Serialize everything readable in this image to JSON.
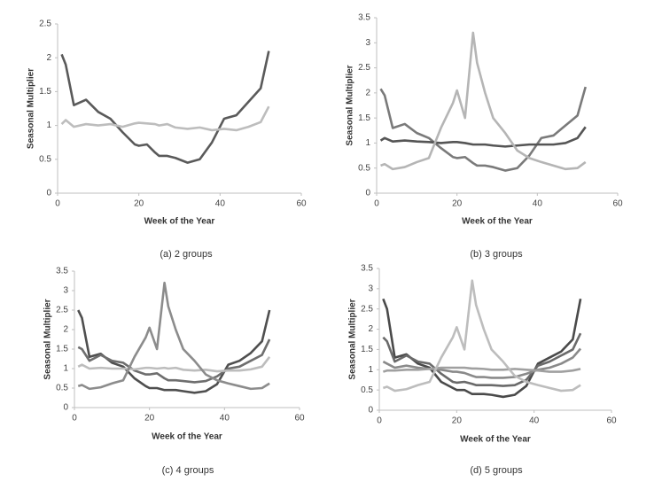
{
  "chart_data": [
    {
      "type": "line",
      "caption": "(a)  2 groups",
      "xlabel": "Week of the Year",
      "ylabel": "Seasonal Multiplier",
      "xlim": [
        0,
        60
      ],
      "xticks": [
        0,
        20,
        40,
        60
      ],
      "ylim": [
        0,
        2.5
      ],
      "yticks": [
        0,
        0.5,
        1,
        1.5,
        2,
        2.5
      ],
      "x": [
        1,
        2,
        4,
        7,
        10,
        13,
        16,
        19,
        20,
        22,
        24,
        25,
        27,
        29,
        32,
        35,
        38,
        41,
        44,
        47,
        50,
        52
      ],
      "series": [
        {
          "color": "#5a5a5a",
          "values": [
            2.05,
            1.9,
            1.3,
            1.38,
            1.2,
            1.1,
            0.9,
            0.72,
            0.7,
            0.72,
            0.6,
            0.55,
            0.55,
            0.52,
            0.45,
            0.5,
            0.75,
            1.1,
            1.15,
            1.35,
            1.55,
            2.1
          ]
        },
        {
          "color": "#bdbdbd",
          "values": [
            1.02,
            1.08,
            0.98,
            1.02,
            1.0,
            1.02,
            0.98,
            1.03,
            1.04,
            1.03,
            1.02,
            1.0,
            1.02,
            0.97,
            0.95,
            0.97,
            0.93,
            0.95,
            0.93,
            0.98,
            1.05,
            1.28
          ]
        }
      ]
    },
    {
      "type": "line",
      "caption": "(b)   3 groups",
      "xlabel": "Week of the Year",
      "ylabel": "Seasonal Multiplier",
      "xlim": [
        0,
        60
      ],
      "xticks": [
        0,
        20,
        40,
        60
      ],
      "ylim": [
        0,
        3.5
      ],
      "yticks": [
        0,
        0.5,
        1,
        1.5,
        2,
        2.5,
        3,
        3.5
      ],
      "x": [
        1,
        2,
        4,
        7,
        10,
        13,
        16,
        19,
        20,
        22,
        24,
        25,
        27,
        29,
        32,
        35,
        38,
        41,
        44,
        47,
        50,
        52
      ],
      "series": [
        {
          "color": "#7a7a7a",
          "values": [
            2.08,
            1.95,
            1.3,
            1.38,
            1.2,
            1.1,
            0.9,
            0.72,
            0.7,
            0.72,
            0.6,
            0.55,
            0.55,
            0.52,
            0.45,
            0.5,
            0.75,
            1.1,
            1.15,
            1.35,
            1.55,
            2.12
          ]
        },
        {
          "color": "#555555",
          "values": [
            1.05,
            1.1,
            1.03,
            1.05,
            1.03,
            1.02,
            1.0,
            1.02,
            1.02,
            1.0,
            0.97,
            0.97,
            0.97,
            0.95,
            0.93,
            0.95,
            0.97,
            0.97,
            0.97,
            1.0,
            1.1,
            1.32
          ]
        },
        {
          "color": "#b5b5b5",
          "values": [
            0.55,
            0.58,
            0.48,
            0.52,
            0.62,
            0.7,
            1.3,
            1.8,
            2.05,
            1.5,
            3.2,
            2.6,
            2.0,
            1.5,
            1.2,
            0.85,
            0.7,
            0.62,
            0.55,
            0.48,
            0.5,
            0.62
          ]
        }
      ]
    },
    {
      "type": "line",
      "caption": "(c) 4 groups",
      "xlabel": "Week of the Year",
      "ylabel": "Seasonal Multiplier",
      "xlim": [
        0,
        60
      ],
      "xticks": [
        0,
        20,
        40,
        60
      ],
      "ylim": [
        0,
        3.5
      ],
      "yticks": [
        0,
        0.5,
        1,
        1.5,
        2,
        2.5,
        3,
        3.5
      ],
      "x": [
        1,
        2,
        4,
        7,
        10,
        13,
        16,
        19,
        20,
        22,
        24,
        25,
        27,
        29,
        32,
        35,
        38,
        41,
        44,
        47,
        50,
        52
      ],
      "series": [
        {
          "color": "#4f4f4f",
          "values": [
            2.5,
            2.3,
            1.3,
            1.38,
            1.15,
            1.05,
            0.75,
            0.55,
            0.5,
            0.5,
            0.45,
            0.45,
            0.45,
            0.42,
            0.38,
            0.42,
            0.6,
            1.1,
            1.2,
            1.4,
            1.7,
            2.5
          ]
        },
        {
          "color": "#6e6e6e",
          "values": [
            1.55,
            1.5,
            1.2,
            1.35,
            1.2,
            1.15,
            0.95,
            0.85,
            0.85,
            0.88,
            0.75,
            0.7,
            0.7,
            0.68,
            0.65,
            0.68,
            0.8,
            1.0,
            1.05,
            1.2,
            1.35,
            1.75
          ]
        },
        {
          "color": "#bdbdbd",
          "values": [
            1.05,
            1.1,
            1.0,
            1.02,
            1.0,
            1.0,
            0.98,
            1.02,
            1.02,
            1.0,
            1.02,
            1.0,
            1.02,
            0.97,
            0.95,
            0.97,
            0.93,
            0.95,
            0.95,
            0.98,
            1.05,
            1.3
          ]
        },
        {
          "color": "#8c8c8c",
          "values": [
            0.55,
            0.58,
            0.48,
            0.52,
            0.62,
            0.7,
            1.3,
            1.8,
            2.05,
            1.5,
            3.2,
            2.6,
            2.0,
            1.5,
            1.2,
            0.85,
            0.7,
            0.62,
            0.55,
            0.48,
            0.5,
            0.62
          ]
        }
      ]
    },
    {
      "type": "line",
      "caption": "(d)  5 groups",
      "xlabel": "Week of the Year",
      "ylabel": "Seasonal Multiplier",
      "xlim": [
        0,
        60
      ],
      "xticks": [
        0,
        20,
        40,
        60
      ],
      "ylim": [
        0,
        3.5
      ],
      "yticks": [
        0,
        0.5,
        1,
        1.5,
        2,
        2.5,
        3,
        3.5
      ],
      "x": [
        1,
        2,
        4,
        7,
        10,
        13,
        16,
        19,
        20,
        22,
        24,
        25,
        27,
        29,
        32,
        35,
        38,
        41,
        44,
        47,
        50,
        52
      ],
      "series": [
        {
          "color": "#4a4a4a",
          "values": [
            2.75,
            2.5,
            1.3,
            1.38,
            1.15,
            1.05,
            0.7,
            0.55,
            0.5,
            0.5,
            0.4,
            0.4,
            0.4,
            0.38,
            0.33,
            0.38,
            0.6,
            1.15,
            1.3,
            1.45,
            1.75,
            2.75
          ]
        },
        {
          "color": "#6a6a6a",
          "values": [
            1.8,
            1.7,
            1.2,
            1.35,
            1.2,
            1.15,
            0.9,
            0.7,
            0.68,
            0.7,
            0.65,
            0.62,
            0.62,
            0.62,
            0.6,
            0.62,
            0.75,
            1.1,
            1.2,
            1.35,
            1.5,
            1.9
          ]
        },
        {
          "color": "#8a8a8a",
          "values": [
            1.2,
            1.15,
            1.05,
            1.1,
            1.05,
            1.02,
            1.0,
            0.95,
            0.95,
            0.92,
            0.85,
            0.82,
            0.82,
            0.8,
            0.8,
            0.82,
            0.9,
            1.0,
            1.05,
            1.15,
            1.3,
            1.52
          ]
        },
        {
          "color": "#a0a0a0",
          "values": [
            0.95,
            0.98,
            0.98,
            1.0,
            1.0,
            1.02,
            1.05,
            1.05,
            1.05,
            1.05,
            1.03,
            1.03,
            1.02,
            1.0,
            1.0,
            1.02,
            1.0,
            0.98,
            0.95,
            0.95,
            0.98,
            1.02
          ]
        },
        {
          "color": "#bdbdbd",
          "values": [
            0.55,
            0.58,
            0.48,
            0.52,
            0.62,
            0.7,
            1.3,
            1.8,
            2.05,
            1.5,
            3.2,
            2.6,
            2.0,
            1.5,
            1.2,
            0.85,
            0.7,
            0.62,
            0.55,
            0.48,
            0.5,
            0.62
          ]
        }
      ]
    }
  ]
}
